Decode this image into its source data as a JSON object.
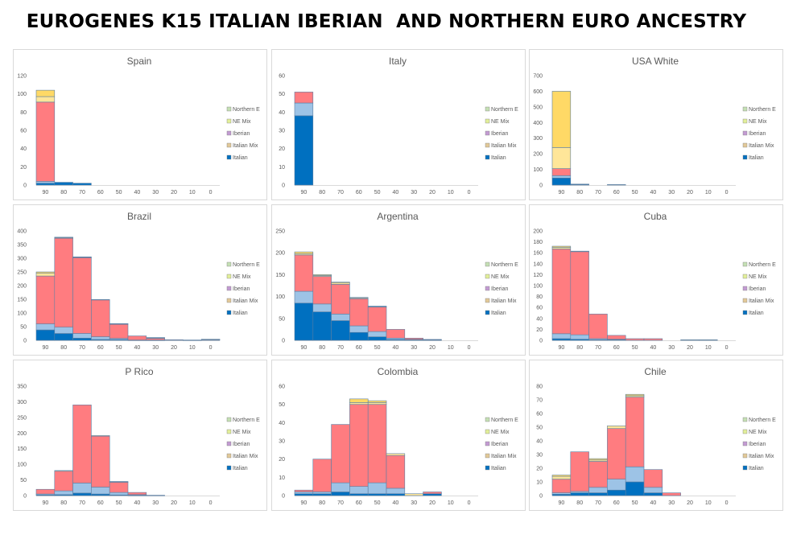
{
  "page": {
    "title": "EUROGENES K15 ITALIAN IBERIAN  AND NORTHERN EURO ANCESTRY"
  },
  "legend_labels": [
    "Northern E",
    "NE Mix",
    "Iberian",
    "Italian Mix",
    "Italian"
  ],
  "colors": {
    "Italian": "#0070c0",
    "Italian Mix": "#9dc3e6",
    "Iberian": "#ff7c80",
    "NE Mix": "#ffe699",
    "Northern E": "#ffd966",
    "legend_Italian": "#0070c0",
    "legend_Italian Mix": "#e2c998",
    "legend_Iberian": "#c39bd3",
    "legend_NE Mix": "#e2ef9a",
    "legend_Northern E": "#c5e0b4"
  },
  "chart_data": [
    {
      "type": "bar",
      "stacked": true,
      "title": "Spain",
      "categories": [
        "90",
        "80",
        "70",
        "60",
        "50",
        "40",
        "30",
        "20",
        "10",
        "0"
      ],
      "ylim": [
        0,
        120
      ],
      "yticks": [
        0,
        20,
        40,
        60,
        80,
        100,
        120
      ],
      "series": [
        {
          "name": "Italian",
          "values": [
            2,
            3,
            2,
            0,
            0,
            0,
            0,
            0,
            0,
            0
          ]
        },
        {
          "name": "Italian Mix",
          "values": [
            2,
            0,
            0,
            0,
            0,
            0,
            0,
            0,
            0,
            0
          ]
        },
        {
          "name": "Iberian",
          "values": [
            87,
            0,
            0,
            0,
            0,
            0,
            0,
            0,
            0,
            0
          ]
        },
        {
          "name": "NE Mix",
          "values": [
            6,
            0,
            0,
            0,
            0,
            0,
            0,
            0,
            0,
            0
          ]
        },
        {
          "name": "Northern E",
          "values": [
            7,
            0,
            0,
            0,
            0,
            0,
            0,
            0,
            0,
            0
          ]
        }
      ]
    },
    {
      "type": "bar",
      "stacked": true,
      "title": "Italy",
      "categories": [
        "90",
        "80",
        "70",
        "60",
        "50",
        "40",
        "30",
        "20",
        "10",
        "0"
      ],
      "ylim": [
        0,
        60
      ],
      "yticks": [
        0,
        10,
        20,
        30,
        40,
        50,
        60
      ],
      "series": [
        {
          "name": "Italian",
          "values": [
            38,
            0,
            0,
            0,
            0,
            0,
            0,
            0,
            0,
            0
          ]
        },
        {
          "name": "Italian Mix",
          "values": [
            7,
            0,
            0,
            0,
            0,
            0,
            0,
            0,
            0,
            0
          ]
        },
        {
          "name": "Iberian",
          "values": [
            6,
            0,
            0,
            0,
            0,
            0,
            0,
            0,
            0,
            0
          ]
        },
        {
          "name": "NE Mix",
          "values": [
            0,
            0,
            0,
            0,
            0,
            0,
            0,
            0,
            0,
            0
          ]
        },
        {
          "name": "Northern E",
          "values": [
            0,
            0,
            0,
            0,
            0,
            0,
            0,
            0,
            0,
            0
          ]
        }
      ]
    },
    {
      "type": "bar",
      "stacked": true,
      "title": "USA White",
      "categories": [
        "90",
        "80",
        "70",
        "60",
        "50",
        "40",
        "30",
        "20",
        "10",
        "0"
      ],
      "ylim": [
        0,
        700
      ],
      "yticks": [
        0,
        100,
        200,
        300,
        400,
        500,
        600,
        700
      ],
      "series": [
        {
          "name": "Italian",
          "values": [
            45,
            4,
            0,
            0,
            0,
            0,
            0,
            0,
            0,
            0
          ]
        },
        {
          "name": "Italian Mix",
          "values": [
            15,
            0,
            0,
            0,
            0,
            0,
            0,
            0,
            0,
            0
          ]
        },
        {
          "name": "Iberian",
          "values": [
            45,
            2,
            0,
            0,
            0,
            0,
            0,
            0,
            0,
            0
          ]
        },
        {
          "name": "NE Mix",
          "values": [
            135,
            0,
            0,
            3,
            0,
            0,
            0,
            0,
            0,
            0
          ]
        },
        {
          "name": "Northern E",
          "values": [
            360,
            0,
            0,
            0,
            0,
            0,
            0,
            0,
            0,
            0
          ]
        }
      ]
    },
    {
      "type": "bar",
      "stacked": true,
      "title": "Brazil",
      "categories": [
        "90",
        "80",
        "70",
        "60",
        "50",
        "40",
        "30",
        "20",
        "10",
        "0"
      ],
      "ylim": [
        0,
        400
      ],
      "yticks": [
        0,
        50,
        100,
        150,
        200,
        250,
        300,
        350,
        400
      ],
      "series": [
        {
          "name": "Italian",
          "values": [
            38,
            25,
            8,
            3,
            3,
            0,
            0,
            0,
            0,
            0
          ]
        },
        {
          "name": "Italian Mix",
          "values": [
            22,
            23,
            17,
            10,
            4,
            1,
            1,
            0,
            0,
            0
          ]
        },
        {
          "name": "Iberian",
          "values": [
            175,
            325,
            277,
            135,
            52,
            15,
            6,
            2,
            1,
            2
          ]
        },
        {
          "name": "NE Mix",
          "values": [
            10,
            2,
            2,
            1,
            1,
            0,
            2,
            0,
            0,
            2
          ]
        },
        {
          "name": "Northern E",
          "values": [
            5,
            2,
            1,
            0,
            1,
            0,
            1,
            0,
            0,
            0
          ]
        }
      ]
    },
    {
      "type": "bar",
      "stacked": true,
      "title": "Argentina",
      "categories": [
        "90",
        "80",
        "70",
        "60",
        "50",
        "40",
        "30",
        "20",
        "10",
        "0"
      ],
      "ylim": [
        0,
        250
      ],
      "yticks": [
        0,
        50,
        100,
        150,
        200,
        250
      ],
      "series": [
        {
          "name": "Italian",
          "values": [
            85,
            65,
            45,
            18,
            8,
            2,
            1,
            1,
            0,
            0
          ]
        },
        {
          "name": "Italian Mix",
          "values": [
            27,
            18,
            15,
            15,
            12,
            3,
            1,
            0,
            0,
            0
          ]
        },
        {
          "name": "Iberian",
          "values": [
            83,
            63,
            68,
            62,
            56,
            20,
            3,
            1,
            0,
            0
          ]
        },
        {
          "name": "NE Mix",
          "values": [
            3,
            2,
            3,
            2,
            1,
            0,
            0,
            0,
            0,
            0
          ]
        },
        {
          "name": "Northern E",
          "values": [
            4,
            2,
            2,
            1,
            1,
            0,
            0,
            0,
            0,
            0
          ]
        }
      ]
    },
    {
      "type": "bar",
      "stacked": true,
      "title": "Cuba",
      "categories": [
        "90",
        "80",
        "70",
        "60",
        "50",
        "40",
        "30",
        "20",
        "10",
        "0"
      ],
      "ylim": [
        0,
        200
      ],
      "yticks": [
        0,
        20,
        40,
        60,
        80,
        100,
        120,
        140,
        160,
        180,
        200
      ],
      "series": [
        {
          "name": "Italian",
          "values": [
            3,
            2,
            1,
            1,
            0,
            0,
            0,
            0,
            0,
            0
          ]
        },
        {
          "name": "Italian Mix",
          "values": [
            9,
            8,
            2,
            1,
            0,
            0,
            0,
            0,
            0,
            0
          ]
        },
        {
          "name": "Iberian",
          "values": [
            155,
            152,
            45,
            7,
            3,
            3,
            0,
            0,
            0,
            0
          ]
        },
        {
          "name": "NE Mix",
          "values": [
            3,
            1,
            0,
            0,
            0,
            0,
            0,
            1,
            1,
            0
          ]
        },
        {
          "name": "Northern E",
          "values": [
            2,
            0,
            0,
            0,
            0,
            0,
            0,
            0,
            0,
            0
          ]
        }
      ]
    },
    {
      "type": "bar",
      "stacked": true,
      "title": "P Rico",
      "categories": [
        "90",
        "80",
        "70",
        "60",
        "50",
        "40",
        "30",
        "20",
        "10",
        "0"
      ],
      "ylim": [
        0,
        350
      ],
      "yticks": [
        0,
        50,
        100,
        150,
        200,
        250,
        300,
        350
      ],
      "series": [
        {
          "name": "Italian",
          "values": [
            2,
            3,
            8,
            5,
            2,
            1,
            0,
            0,
            0,
            0
          ]
        },
        {
          "name": "Italian Mix",
          "values": [
            3,
            12,
            32,
            22,
            8,
            2,
            0,
            0,
            0,
            0
          ]
        },
        {
          "name": "Iberian",
          "values": [
            15,
            63,
            250,
            163,
            33,
            7,
            1,
            0,
            0,
            0
          ]
        },
        {
          "name": "NE Mix",
          "values": [
            0,
            2,
            0,
            2,
            1,
            0,
            0,
            0,
            0,
            0
          ]
        },
        {
          "name": "Northern E",
          "values": [
            0,
            0,
            0,
            0,
            1,
            0,
            0,
            0,
            0,
            0
          ]
        }
      ]
    },
    {
      "type": "bar",
      "stacked": true,
      "title": "Colombia",
      "categories": [
        "90",
        "80",
        "70",
        "60",
        "50",
        "40",
        "30",
        "20",
        "10",
        "0"
      ],
      "ylim": [
        0,
        60
      ],
      "yticks": [
        0,
        10,
        20,
        30,
        40,
        50,
        60
      ],
      "series": [
        {
          "name": "Italian",
          "values": [
            1,
            1,
            2,
            1,
            1,
            1,
            0,
            1,
            0,
            0
          ]
        },
        {
          "name": "Italian Mix",
          "values": [
            1,
            1,
            5,
            4,
            6,
            3,
            0,
            0,
            0,
            0
          ]
        },
        {
          "name": "Iberian",
          "values": [
            1,
            18,
            32,
            45,
            43,
            18,
            0,
            1,
            0,
            0
          ]
        },
        {
          "name": "NE Mix",
          "values": [
            0,
            0,
            0,
            1,
            1,
            1,
            1,
            0,
            0,
            0
          ]
        },
        {
          "name": "Northern E",
          "values": [
            0,
            0,
            0,
            2,
            1,
            0,
            0,
            0,
            0,
            0
          ]
        }
      ]
    },
    {
      "type": "bar",
      "stacked": true,
      "title": "Chile",
      "categories": [
        "90",
        "80",
        "70",
        "60",
        "50",
        "40",
        "30",
        "20",
        "10",
        "0"
      ],
      "ylim": [
        0,
        80
      ],
      "yticks": [
        0,
        10,
        20,
        30,
        40,
        50,
        60,
        70,
        80
      ],
      "series": [
        {
          "name": "Italian",
          "values": [
            1,
            2,
            2,
            4,
            10,
            2,
            0,
            0,
            0,
            0
          ]
        },
        {
          "name": "Italian Mix",
          "values": [
            1,
            1,
            4,
            8,
            11,
            4,
            0,
            0,
            0,
            0
          ]
        },
        {
          "name": "Iberian",
          "values": [
            10,
            29,
            19,
            37,
            51,
            13,
            2,
            0,
            0,
            0
          ]
        },
        {
          "name": "NE Mix",
          "values": [
            2,
            0,
            1,
            2,
            1,
            0,
            0,
            0,
            0,
            0
          ]
        },
        {
          "name": "Northern E",
          "values": [
            1,
            0,
            1,
            0,
            1,
            0,
            0,
            0,
            0,
            0
          ]
        }
      ]
    }
  ]
}
